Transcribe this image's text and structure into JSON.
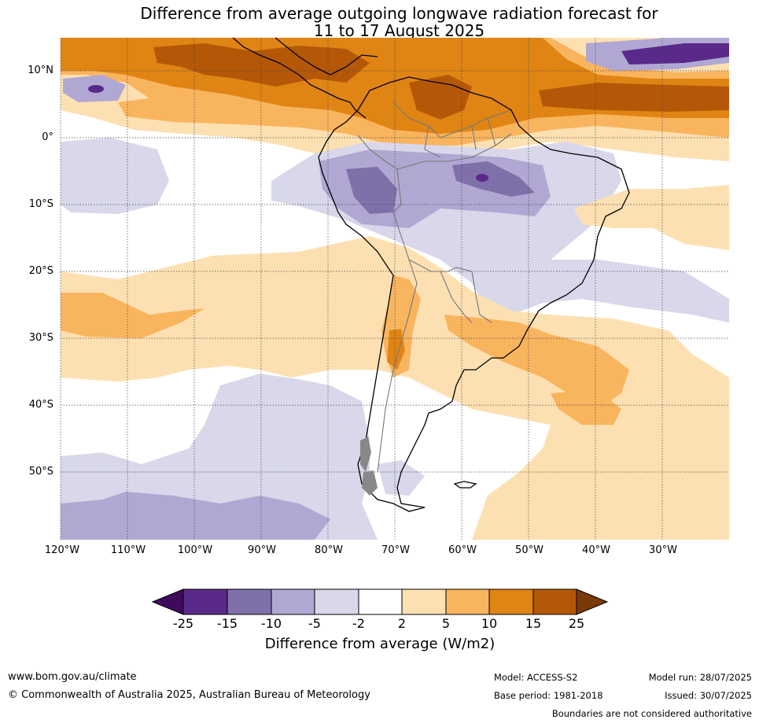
{
  "title_line1": "Difference from average outgoing longwave radiation forecast for",
  "title_line2": "11 to 17 August 2025",
  "lat_labels": [
    "10°N",
    "0°",
    "10°S",
    "20°S",
    "30°S",
    "40°S",
    "50°S"
  ],
  "lon_labels": [
    "120°W",
    "110°W",
    "100°W",
    "90°W",
    "80°W",
    "70°W",
    "60°W",
    "50°W",
    "40°W",
    "30°W"
  ],
  "colorbar": {
    "ticks": [
      "-25",
      "-15",
      "-10",
      "-5",
      "-2",
      "2",
      "5",
      "10",
      "15",
      "25"
    ],
    "colors": [
      "#3f0a5e",
      "#5a2a8a",
      "#8070aa",
      "#b0a8d2",
      "#d8d8ea",
      "#ffffff",
      "#fde0b2",
      "#f9b45e",
      "#e08414",
      "#b45808",
      "#7a3a08"
    ],
    "label": "Difference from average (W/m2)"
  },
  "footer": {
    "url": "www.bom.gov.au/climate",
    "copyright": "© Commonwealth of Australia 2025, Australian Bureau of Meteorology",
    "model": "Model: ACCESS-S2",
    "base_period": "Base period: 1981-2018",
    "model_run": "Model run: 28/07/2025",
    "issued": "Issued: 30/07/2025",
    "boundaries_note": "Boundaries are not considered authoritative"
  }
}
